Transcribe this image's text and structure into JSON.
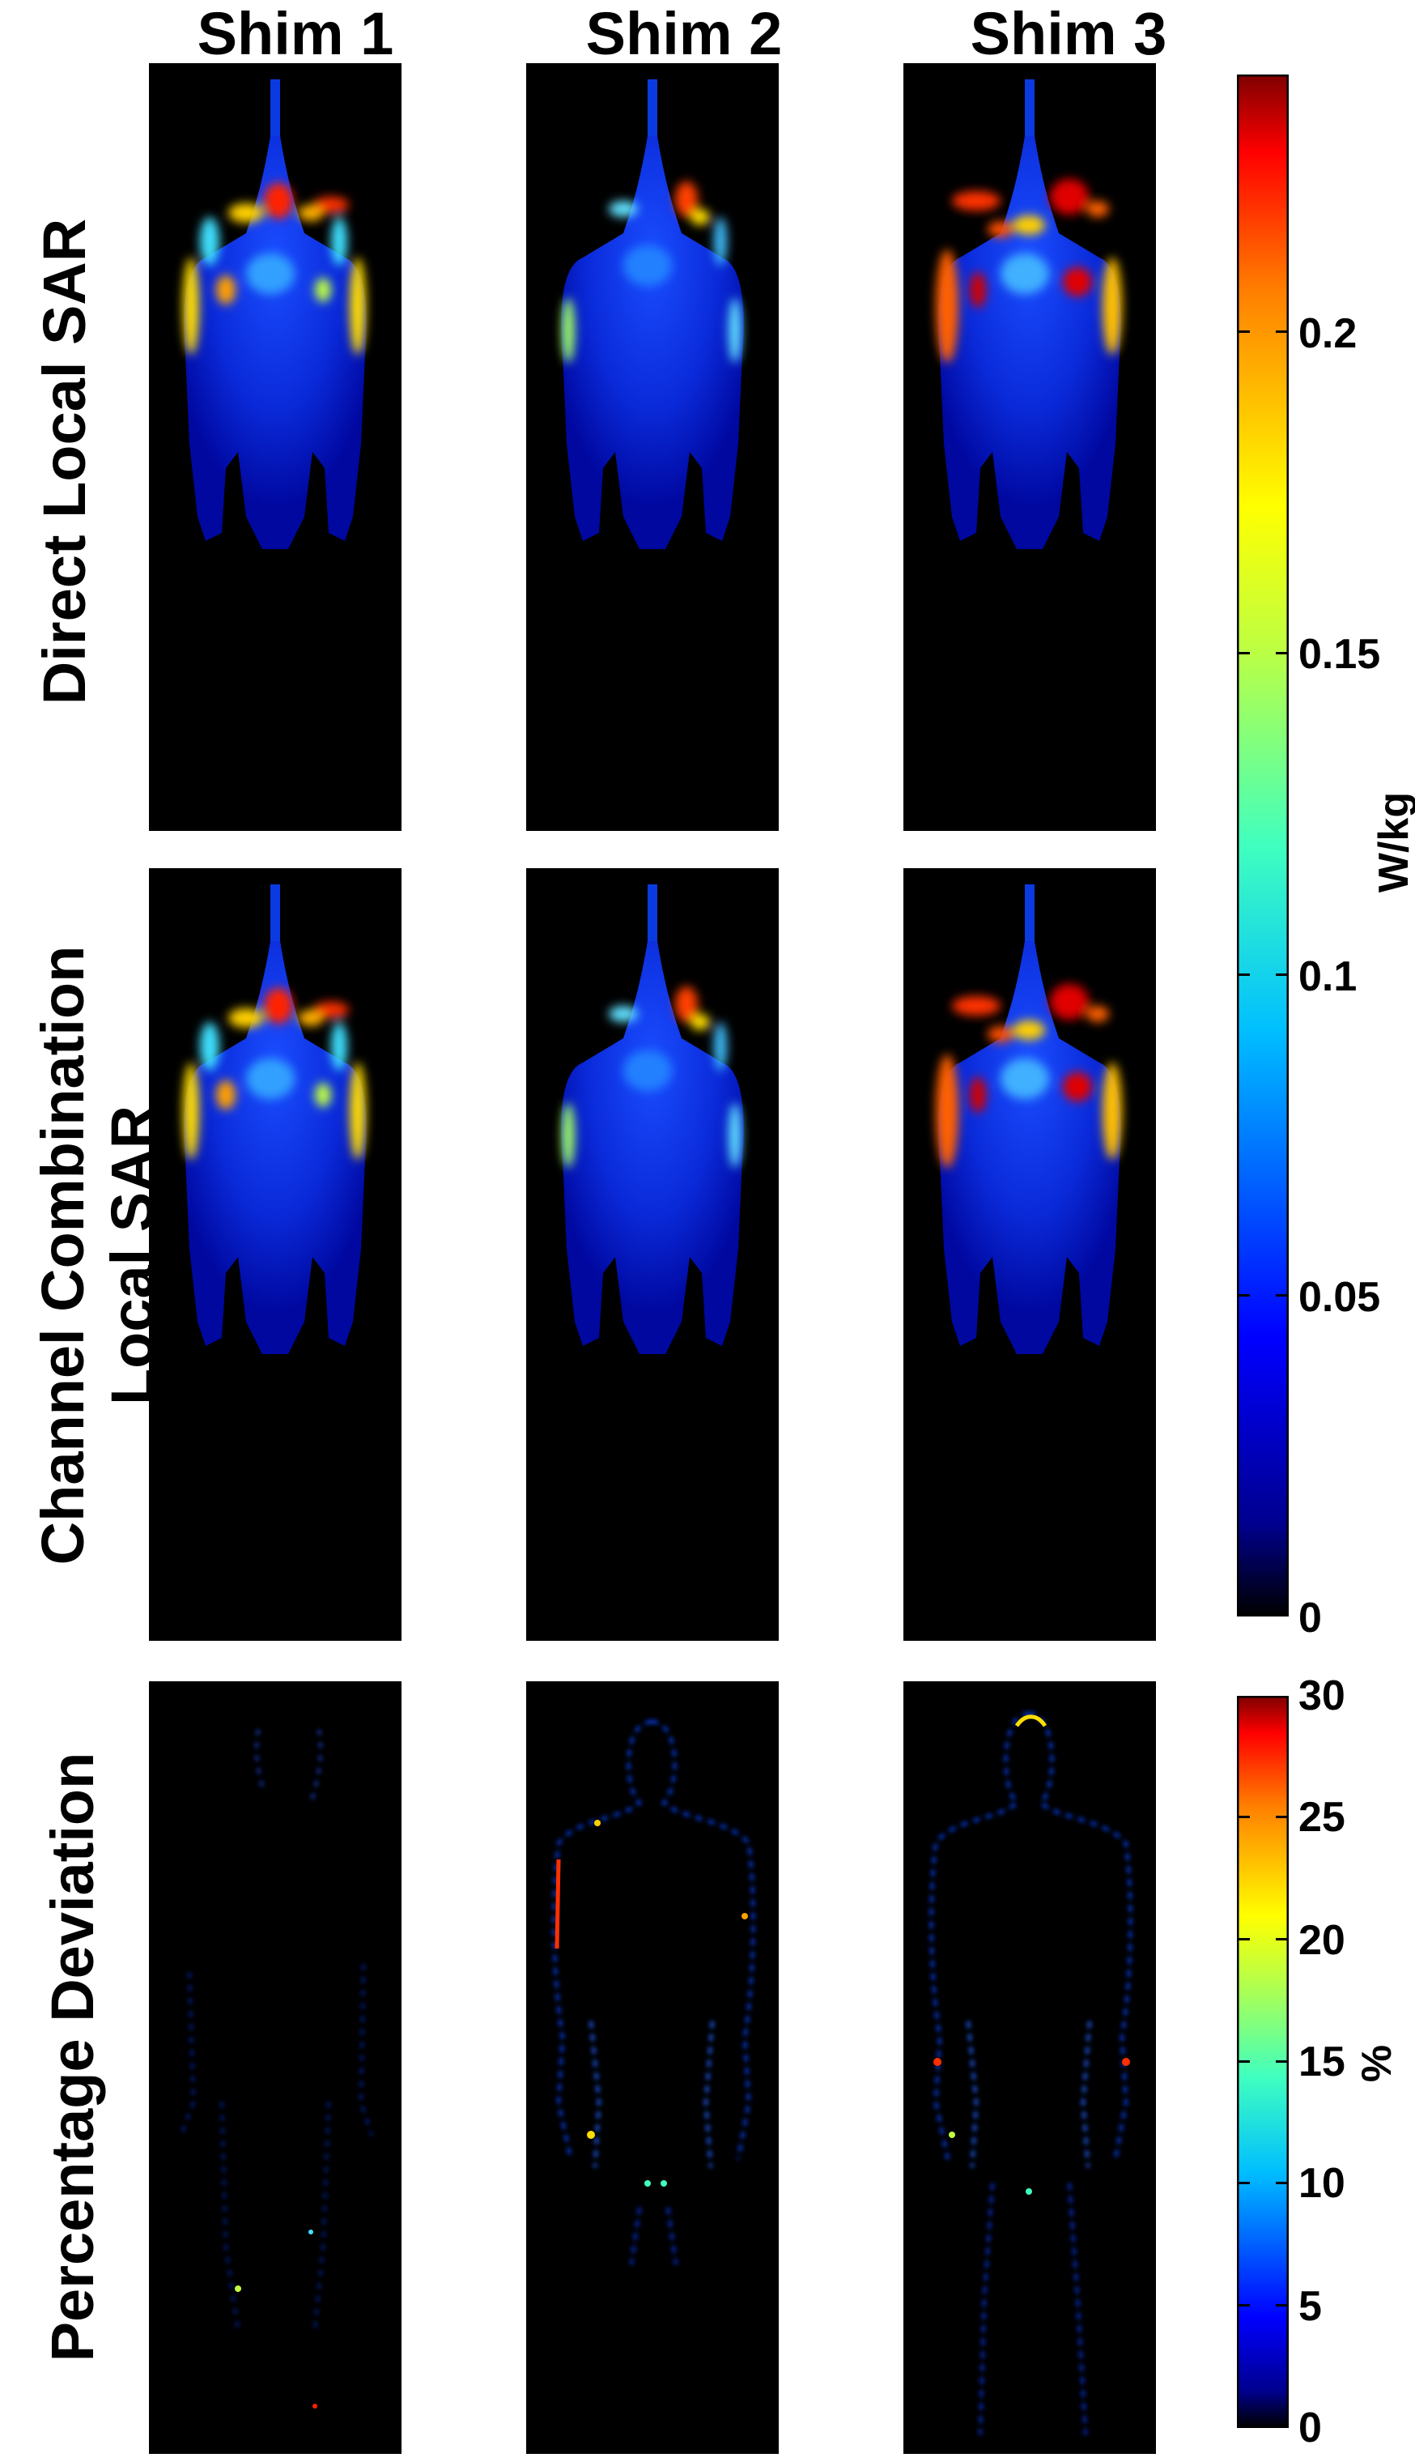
{
  "columns": [
    "Shim 1",
    "Shim 2",
    "Shim 3"
  ],
  "rows": [
    {
      "label_line1": "Direct Local SAR",
      "label_line2": ""
    },
    {
      "label_line1": "Channel Combination",
      "label_line2": "Local SAR"
    },
    {
      "label_line1": "Percentage Deviation",
      "label_line2": ""
    }
  ],
  "colorbar_sar": {
    "unit": "W/kg",
    "ticks": [
      "0",
      "0.05",
      "0.1",
      "0.15",
      "0.2"
    ],
    "range": [
      0,
      0.24
    ]
  },
  "colorbar_dev": {
    "unit": "%",
    "ticks": [
      "0",
      "5",
      "10",
      "15",
      "20",
      "25",
      "30"
    ],
    "range": [
      0,
      30
    ]
  },
  "colormap": "jet"
}
